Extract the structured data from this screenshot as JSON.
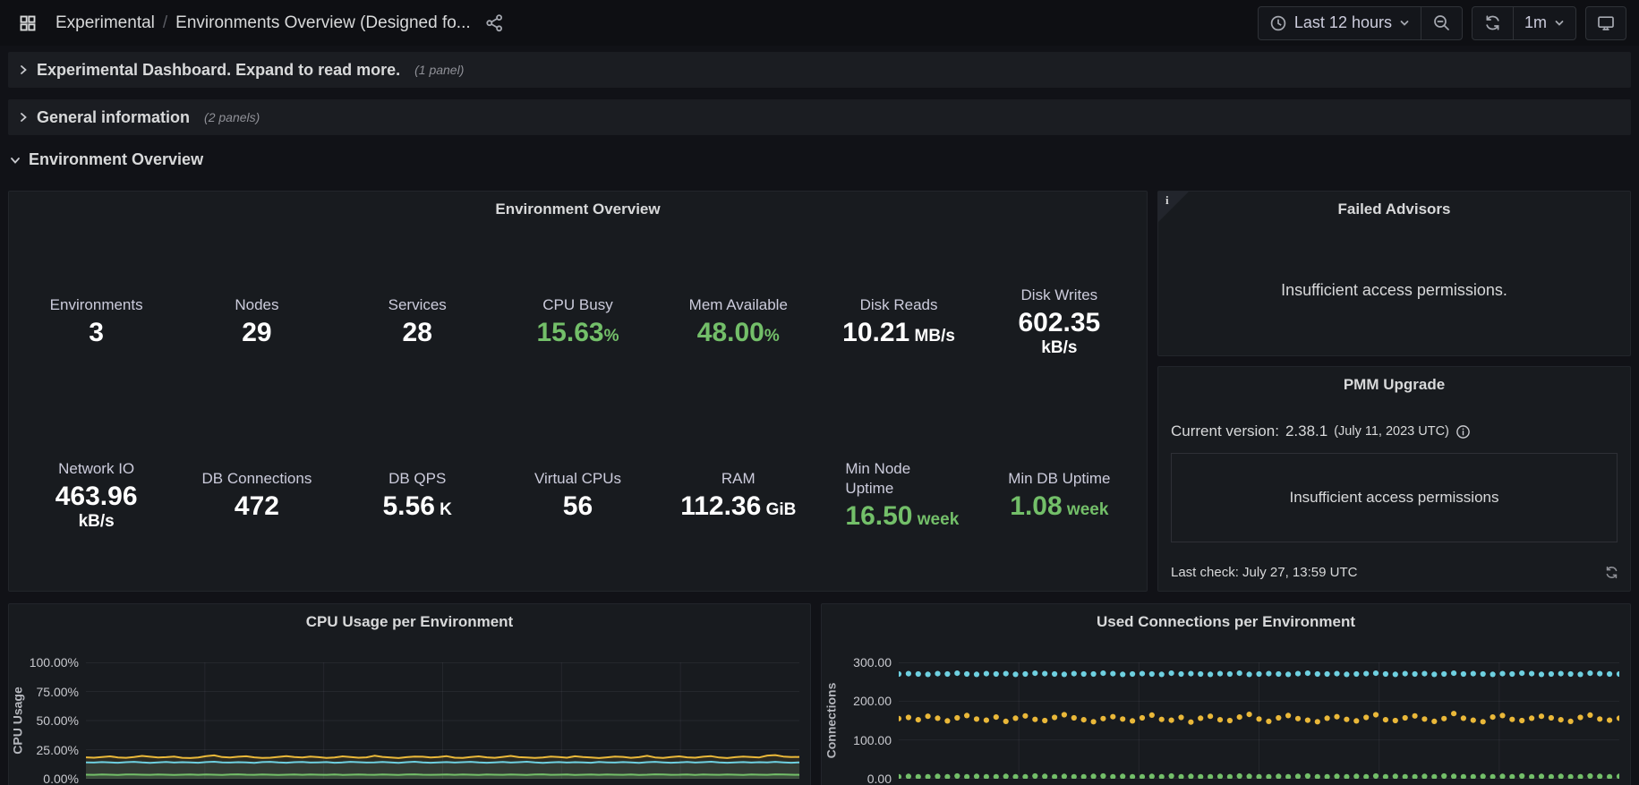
{
  "colors": {
    "green": "#73bf69",
    "yellow": "#eab839",
    "cyan": "#6ed0e0",
    "panel_bg": "#181b1f",
    "page_bg": "#111217",
    "text": "#d8d9da",
    "grid": "rgba(204,204,220,0.07)"
  },
  "icons": {
    "apps": "grid-4-squares",
    "share": "share-alt-nodes",
    "clock": "clock-face",
    "caret": "chevron-down",
    "zoom_out": "magnifier-minus",
    "refresh": "circular-arrows",
    "kiosk": "monitor-screen",
    "info": "info-circle",
    "row_collapsed": "chevron-right",
    "row_expanded": "chevron-down"
  },
  "toolbar": {
    "breadcrumb": {
      "section": "Experimental",
      "separator": "/",
      "title": "Environments Overview (Designed fo..."
    },
    "time_range": "Last 12 hours",
    "interval": "1m"
  },
  "rows": [
    {
      "title": "Experimental Dashboard. Expand to read more.",
      "count": "(1 panel)",
      "state": "collapsed"
    },
    {
      "title": "General information",
      "count": "(2 panels)",
      "state": "collapsed"
    },
    {
      "title": "Environment Overview",
      "count": "",
      "state": "expanded"
    }
  ],
  "env_overview": {
    "title": "Environment Overview",
    "stats": [
      {
        "label": "Environments",
        "value": "3",
        "unit": "",
        "color": "#ffffff"
      },
      {
        "label": "Nodes",
        "value": "29",
        "unit": "",
        "color": "#ffffff"
      },
      {
        "label": "Services",
        "value": "28",
        "unit": "",
        "color": "#ffffff"
      },
      {
        "label": "CPU Busy",
        "value": "15.63",
        "unit": "%",
        "color": "#73bf69",
        "unit_gap": false
      },
      {
        "label": "Mem Available",
        "value": "48.00",
        "unit": "%",
        "color": "#73bf69",
        "unit_gap": false
      },
      {
        "label": "Disk Reads",
        "value": "10.21",
        "unit": "MB/s",
        "color": "#ffffff",
        "unit_gap": true
      },
      {
        "label": "Disk Writes",
        "value": "602.35",
        "unit": "kB/s",
        "color": "#ffffff",
        "unit_layout": "stacked"
      },
      {
        "label": "Network IO",
        "value": "463.96",
        "unit": "kB/s",
        "color": "#ffffff",
        "unit_layout": "stacked"
      },
      {
        "label": "DB Connections",
        "value": "472",
        "unit": "",
        "color": "#ffffff"
      },
      {
        "label": "DB QPS",
        "value": "5.56",
        "unit": "K",
        "color": "#ffffff",
        "unit_gap": true
      },
      {
        "label": "Virtual CPUs",
        "value": "56",
        "unit": "",
        "color": "#ffffff"
      },
      {
        "label": "RAM",
        "value": "112.36",
        "unit": "GiB",
        "color": "#ffffff",
        "unit_gap": true
      },
      {
        "label": "Min Node Uptime",
        "value": "16.50",
        "unit": "week",
        "color": "#73bf69",
        "unit_gap": true,
        "align": "left",
        "label_wrap": true
      },
      {
        "label": "Min DB Uptime",
        "value": "1.08",
        "unit": "week",
        "color": "#73bf69",
        "unit_gap": true
      }
    ]
  },
  "failed_advisors": {
    "title": "Failed Advisors",
    "corner_letter": "i",
    "message": "Insufficient access permissions."
  },
  "pmm_upgrade": {
    "title": "PMM Upgrade",
    "version_label": "Current version:",
    "version": "2.38.1",
    "version_date": "(July 11, 2023 UTC)",
    "message": "Insufficient access permissions",
    "last_check": "Last check: July 27, 13:59 UTC"
  },
  "chart_data": [
    {
      "type": "line",
      "title": "CPU Usage per Environment",
      "ylabel": "CPU Usage",
      "xlabel": "",
      "ylim": [
        0,
        100
      ],
      "yticks": [
        "100.00%",
        "75.00%",
        "50.00%",
        "25.00%",
        "0.00%"
      ],
      "ytick_values": [
        100,
        75,
        50,
        25,
        0
      ],
      "xticks": [],
      "grid": true,
      "legend_visible": false,
      "series": [
        {
          "name": "yellow",
          "color": "#eab839",
          "mode": "line",
          "fill_opacity": 0.1,
          "values": [
            18.4,
            18.1,
            18.6,
            19.2,
            18.3,
            18.0,
            18.7,
            19.6,
            18.9,
            18.2,
            18.5,
            19.1,
            18.0,
            17.8,
            18.3,
            19.4,
            20.1,
            18.6,
            18.2,
            18.9,
            19.3,
            18.4,
            17.9,
            18.1,
            18.8,
            19.5,
            18.7,
            18.3,
            19.0,
            18.5,
            17.9,
            18.2,
            19.2,
            18.6,
            18.1,
            18.4,
            19.8,
            18.8,
            18.3,
            17.8,
            18.5,
            19.1,
            18.9,
            18.2,
            18.6,
            19.4,
            18.1,
            17.9,
            18.7,
            19.2,
            18.4,
            18.0,
            18.8,
            19.6,
            18.5,
            18.2,
            17.9,
            18.3,
            19.0,
            18.6,
            18.1,
            19.3,
            18.7,
            18.2,
            17.8,
            18.4,
            19.1,
            18.8,
            18.0,
            18.5,
            19.7,
            18.3,
            17.9,
            18.6,
            19.2,
            18.4,
            18.1,
            18.9,
            19.4,
            18.2,
            17.8,
            18.5,
            19.0,
            18.7,
            18.3,
            19.9,
            20.3,
            19.1,
            18.6,
            18.8
          ]
        },
        {
          "name": "cyan",
          "color": "#6ed0e0",
          "mode": "line",
          "fill_opacity": 0.1,
          "values": [
            14.1,
            13.9,
            14.3,
            14.0,
            13.8,
            14.2,
            14.5,
            14.0,
            13.7,
            14.1,
            14.4,
            13.9,
            14.2,
            14.0,
            13.8,
            14.3,
            14.6,
            14.1,
            13.9,
            14.2,
            14.0,
            13.7,
            14.3,
            14.5,
            14.0,
            13.8,
            14.2,
            14.4,
            13.9,
            14.1,
            14.3,
            13.8,
            14.0,
            14.5,
            14.2,
            13.9,
            14.1,
            14.4,
            14.0,
            13.7,
            14.2,
            14.6,
            14.1,
            13.8,
            14.0,
            14.3,
            13.9,
            14.2,
            14.5,
            14.0,
            13.8,
            14.1,
            14.4,
            13.9,
            14.2,
            14.6,
            14.0,
            13.7,
            14.1,
            14.3,
            13.9,
            14.2,
            14.0,
            13.8,
            14.4,
            14.1,
            13.9,
            14.3,
            14.0,
            13.7,
            14.2,
            14.5,
            14.1,
            13.8,
            14.0,
            14.4,
            13.9,
            14.2,
            14.6,
            14.0,
            13.8,
            14.1,
            14.3,
            13.9,
            14.2,
            14.0,
            14.5,
            14.1,
            13.8,
            14.0
          ]
        },
        {
          "name": "green",
          "color": "#73bf69",
          "mode": "line",
          "fill_opacity": 0.14,
          "values": [
            3.5,
            3.4,
            3.6,
            3.5,
            3.3,
            3.6,
            3.7,
            3.5,
            3.4,
            3.6,
            3.5,
            3.3,
            3.5,
            3.7,
            3.4,
            3.6,
            3.5,
            3.3,
            3.6,
            3.8,
            3.5,
            3.4,
            3.6,
            3.5,
            3.3,
            3.5,
            3.7,
            3.4,
            3.6,
            3.5,
            3.4,
            3.6,
            3.3,
            3.5,
            3.7,
            3.5,
            3.4,
            3.6,
            3.5,
            3.3,
            3.6,
            3.8,
            3.5,
            3.4,
            3.5,
            3.7,
            3.4,
            3.6,
            3.5,
            3.3,
            3.6,
            3.5,
            3.4,
            3.7,
            3.5,
            3.3,
            3.6,
            3.8,
            3.4,
            3.5,
            3.6,
            3.3,
            3.5,
            3.7,
            3.4,
            3.6,
            3.5,
            3.4,
            3.6,
            3.3,
            3.5,
            3.8,
            3.6,
            3.4,
            3.5,
            3.7,
            3.3,
            3.6,
            3.5,
            3.4,
            3.7,
            3.5,
            3.3,
            3.6,
            3.5,
            3.4,
            3.8,
            3.6,
            3.5,
            3.4
          ]
        }
      ]
    },
    {
      "type": "scatter",
      "title": "Used Connections per Environment",
      "ylabel": "Connections",
      "xlabel": "",
      "ylim": [
        0,
        300
      ],
      "yticks": [
        "300.00",
        "200.00",
        "100.00",
        "0.00"
      ],
      "ytick_values": [
        300,
        200,
        100,
        0
      ],
      "xticks": [],
      "grid": true,
      "legend_visible": false,
      "series": [
        {
          "name": "cyan",
          "color": "#6ed0e0",
          "mode": "points",
          "values": [
            270,
            271,
            270,
            269,
            271,
            270,
            272,
            270,
            269,
            271,
            270,
            271,
            269,
            270,
            272,
            271,
            270,
            269,
            271,
            270,
            270,
            272,
            271,
            269,
            270,
            271,
            270,
            269,
            272,
            270,
            271,
            270,
            269,
            271,
            270,
            272,
            269,
            270,
            271,
            270,
            269,
            271,
            272,
            270,
            270,
            271,
            269,
            270,
            271,
            272,
            270,
            269,
            271,
            270,
            271,
            269,
            270,
            272,
            270,
            271,
            270,
            269,
            271,
            270,
            272,
            271,
            269,
            270,
            271,
            270,
            269,
            272,
            271,
            270,
            270
          ]
        },
        {
          "name": "yellow",
          "color": "#eab839",
          "mode": "points",
          "values": [
            155,
            158,
            152,
            161,
            156,
            149,
            157,
            163,
            154,
            151,
            159,
            148,
            156,
            162,
            153,
            150,
            158,
            165,
            157,
            152,
            147,
            155,
            160,
            154,
            149,
            157,
            164,
            153,
            151,
            158,
            146,
            156,
            161,
            152,
            150,
            159,
            166,
            154,
            148,
            157,
            163,
            155,
            151,
            147,
            156,
            160,
            153,
            149,
            158,
            165,
            152,
            150,
            157,
            162,
            154,
            148,
            155,
            168,
            156,
            151,
            147,
            159,
            163,
            153,
            150,
            156,
            161,
            157,
            152,
            148,
            158,
            164,
            154,
            151,
            156
          ]
        },
        {
          "name": "green",
          "color": "#73bf69",
          "mode": "points",
          "values": [
            5,
            6,
            5,
            5,
            6,
            5,
            7,
            5,
            6,
            5,
            5,
            6,
            5,
            5,
            7,
            6,
            5,
            6,
            5,
            5,
            6,
            7,
            5,
            6,
            5,
            5,
            6,
            5,
            7,
            5,
            6,
            5,
            5,
            6,
            5,
            7,
            6,
            5,
            5,
            6,
            5,
            6,
            7,
            5,
            5,
            6,
            5,
            6,
            5,
            7,
            5,
            6,
            5,
            5,
            6,
            5,
            7,
            6,
            5,
            5,
            6,
            5,
            6,
            5,
            7,
            5,
            6,
            5,
            6,
            5,
            5,
            7,
            6,
            5,
            6
          ]
        }
      ]
    }
  ]
}
